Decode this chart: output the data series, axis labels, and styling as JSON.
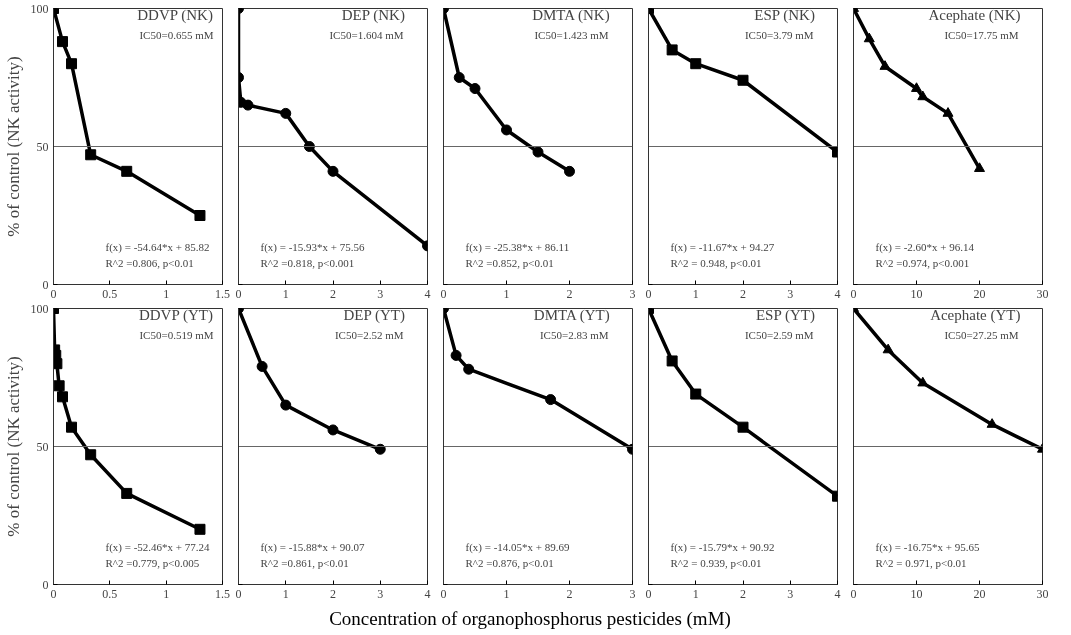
{
  "chart_data": [
    {
      "type": "line",
      "title": "DDVP (NK)",
      "ylabel": "% of control (NK activity)",
      "annotations": [
        "IC50=0.655 mM",
        "f(x) = -54.64*x + 85.82",
        "R^2 =0.806, p<0.01"
      ],
      "xlim": [
        0,
        1.5
      ],
      "xticks": [
        0,
        0.5,
        1,
        1.5
      ],
      "ylim": [
        0,
        100
      ],
      "yticks": [
        0,
        50,
        100
      ],
      "grid": false,
      "marker": "square",
      "line_style": "solid",
      "ref_lines": [
        {
          "axis": "y",
          "value": 50,
          "color": "#666666"
        }
      ],
      "series": [
        {
          "color": "#000000",
          "x": [
            0,
            0.08,
            0.16,
            0.33,
            0.65,
            1.3
          ],
          "values": [
            100,
            88,
            80,
            47,
            41,
            25
          ]
        }
      ]
    },
    {
      "type": "line",
      "title": "DEP (NK)",
      "annotations": [
        "IC50=1.604 mM",
        "f(x) = -15.93*x + 75.56",
        "R^2 =0.818, p<0.001"
      ],
      "xlim": [
        0,
        4
      ],
      "xticks": [
        0,
        1,
        2,
        3,
        4
      ],
      "ylim": [
        0,
        100
      ],
      "yticks": [
        0,
        50,
        100
      ],
      "tick_labels": "x",
      "grid": false,
      "marker": "circle",
      "line_style": "solid",
      "ref_lines": [
        {
          "axis": "y",
          "value": 50,
          "color": "#666666"
        }
      ],
      "series": [
        {
          "color": "#000000",
          "x": [
            0,
            0,
            0.05,
            0.2,
            1,
            1.5,
            2,
            4
          ],
          "values": [
            100,
            75,
            66,
            65,
            62,
            50,
            41,
            14
          ]
        }
      ]
    },
    {
      "type": "line",
      "title": "DMTA (NK)",
      "annotations": [
        "IC50=1.423 mM",
        "f(x) = -25.38*x + 86.11",
        "R^2 =0.852, p<0.01"
      ],
      "xlim": [
        0,
        3
      ],
      "xticks": [
        0,
        1,
        2,
        3
      ],
      "ylim": [
        0,
        100
      ],
      "yticks": [
        0,
        50,
        100
      ],
      "tick_labels": "x",
      "grid": false,
      "marker": "circle",
      "line_style": "solid",
      "ref_lines": [
        {
          "axis": "y",
          "value": 50,
          "color": "#666666"
        }
      ],
      "series": [
        {
          "color": "#000000",
          "x": [
            0,
            0.25,
            0.5,
            1,
            1.5,
            2
          ],
          "values": [
            100,
            75,
            71,
            56,
            48,
            41
          ]
        }
      ]
    },
    {
      "type": "line",
      "title": "ESP (NK)",
      "annotations": [
        "IC50=3.79 mM",
        "f(x) = -11.67*x + 94.27",
        "R^2 = 0.948, p<0.01"
      ],
      "xlim": [
        0,
        4
      ],
      "xticks": [
        0,
        1,
        2,
        3,
        4
      ],
      "ylim": [
        0,
        100
      ],
      "yticks": [
        0,
        50,
        100
      ],
      "tick_labels": "x",
      "grid": false,
      "marker": "square",
      "line_style": "solid",
      "ref_lines": [
        {
          "axis": "y",
          "value": 50,
          "color": "#666666"
        }
      ],
      "series": [
        {
          "color": "#000000",
          "x": [
            0,
            0.5,
            1,
            2,
            4
          ],
          "values": [
            100,
            85,
            80,
            74,
            48
          ]
        }
      ]
    },
    {
      "type": "line",
      "title": "Acephate (NK)",
      "annotations": [
        "IC50=17.75 mM",
        "f(x) = -2.60*x + 96.14",
        "R^2 =0.974, p<0.001"
      ],
      "xlim": [
        0,
        30
      ],
      "xticks": [
        0,
        10,
        20,
        30
      ],
      "ylim": [
        0,
        100
      ],
      "yticks": [
        0,
        50,
        100
      ],
      "tick_labels": "x",
      "grid": false,
      "marker": "triangle",
      "line_style": "solid",
      "ref_lines": [
        {
          "axis": "y",
          "value": 50,
          "color": "#666666"
        }
      ],
      "series": [
        {
          "color": "#000000",
          "x": [
            0,
            2.5,
            5,
            10,
            11,
            15,
            20
          ],
          "values": [
            100,
            89,
            79,
            71,
            68,
            62,
            42
          ]
        }
      ]
    },
    {
      "type": "line",
      "title": "DDVP (YT)",
      "ylabel": "% of control (NK activity)",
      "annotations": [
        "IC50=0.519 mM",
        "f(x) = -52.46*x + 77.24",
        "R^2 =0.779, p<0.005"
      ],
      "xlim": [
        0,
        1.5
      ],
      "xticks": [
        0,
        0.5,
        1,
        1.5
      ],
      "ylim": [
        0,
        100
      ],
      "yticks": [
        0,
        50,
        100
      ],
      "grid": false,
      "marker": "square",
      "line_style": "solid",
      "ref_lines": [
        {
          "axis": "y",
          "value": 50,
          "color": "#666666"
        }
      ],
      "series": [
        {
          "color": "#000000",
          "x": [
            0,
            0.01,
            0.02,
            0.03,
            0.05,
            0.08,
            0.16,
            0.33,
            0.65,
            1.3
          ],
          "values": [
            100,
            85,
            83,
            80,
            72,
            68,
            57,
            47,
            33,
            20
          ]
        }
      ]
    },
    {
      "type": "line",
      "title": "DEP (YT)",
      "annotations": [
        "IC50=2.52 mM",
        "f(x) = -15.88*x + 90.07",
        "R^2 =0.861, p<0.01"
      ],
      "xlim": [
        0,
        4
      ],
      "xticks": [
        0,
        1,
        2,
        3,
        4
      ],
      "ylim": [
        0,
        100
      ],
      "yticks": [
        0,
        50,
        100
      ],
      "tick_labels": "x",
      "grid": false,
      "marker": "circle",
      "line_style": "solid",
      "ref_lines": [
        {
          "axis": "y",
          "value": 50,
          "color": "#666666"
        }
      ],
      "series": [
        {
          "color": "#000000",
          "x": [
            0,
            0.5,
            1,
            2,
            3
          ],
          "values": [
            100,
            79,
            65,
            56,
            49
          ]
        }
      ]
    },
    {
      "type": "line",
      "title": "DMTA (YT)",
      "xlabel": "Concentration of organophosphorus pesticides (mM)",
      "annotations": [
        "IC50=2.83 mM",
        "f(x) = -14.05*x + 89.69",
        "R^2 =0.876, p<0.01"
      ],
      "xlim": [
        0,
        3
      ],
      "xticks": [
        0,
        1,
        2,
        3
      ],
      "ylim": [
        0,
        100
      ],
      "yticks": [
        0,
        50,
        100
      ],
      "tick_labels": "x",
      "grid": false,
      "marker": "circle",
      "line_style": "solid",
      "ref_lines": [
        {
          "axis": "y",
          "value": 50,
          "color": "#666666"
        }
      ],
      "series": [
        {
          "color": "#000000",
          "x": [
            0,
            0.2,
            0.4,
            1.7,
            3
          ],
          "values": [
            100,
            83,
            78,
            67,
            49
          ]
        }
      ]
    },
    {
      "type": "line",
      "title": "ESP (YT)",
      "annotations": [
        "IC50=2.59 mM",
        "f(x) = -15.79*x + 90.92",
        "R^2 = 0.939, p<0.01"
      ],
      "xlim": [
        0,
        4
      ],
      "xticks": [
        0,
        1,
        2,
        3,
        4
      ],
      "ylim": [
        0,
        100
      ],
      "yticks": [
        0,
        50,
        100
      ],
      "tick_labels": "x",
      "grid": false,
      "marker": "square",
      "line_style": "solid",
      "ref_lines": [
        {
          "axis": "y",
          "value": 50,
          "color": "#666666"
        }
      ],
      "series": [
        {
          "color": "#000000",
          "x": [
            0,
            0.5,
            1,
            2,
            4
          ],
          "values": [
            100,
            81,
            69,
            57,
            32
          ]
        }
      ]
    },
    {
      "type": "line",
      "title": "Acephate (YT)",
      "annotations": [
        "IC50=27.25 mM",
        "f(x) = -16.75*x + 95.65",
        "R^2 = 0.971, p<0.01"
      ],
      "xlim": [
        0,
        30
      ],
      "xticks": [
        0,
        10,
        20,
        30
      ],
      "ylim": [
        0,
        100
      ],
      "yticks": [
        0,
        50,
        100
      ],
      "tick_labels": "x",
      "grid": false,
      "marker": "triangle",
      "line_style": "solid",
      "ref_lines": [
        {
          "axis": "y",
          "value": 50,
          "color": "#666666"
        }
      ],
      "series": [
        {
          "color": "#000000",
          "x": [
            0,
            5.5,
            11,
            22,
            30
          ],
          "values": [
            100,
            85,
            73,
            58,
            49
          ]
        }
      ]
    }
  ]
}
